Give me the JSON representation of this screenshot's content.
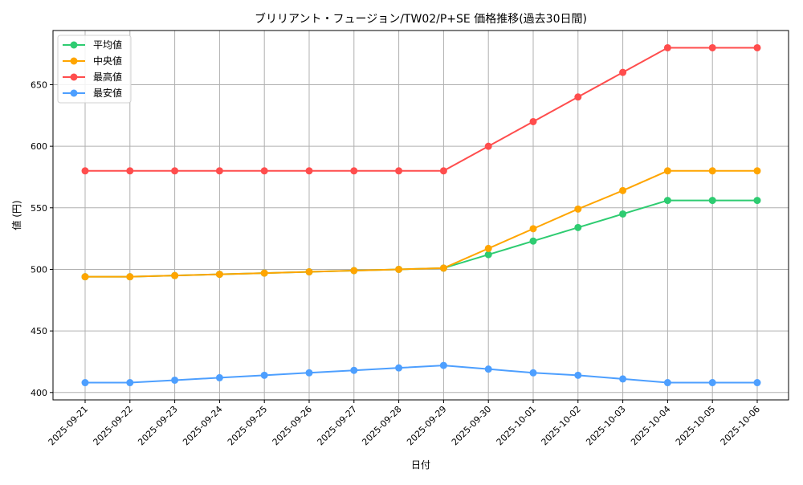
{
  "chart_data": {
    "type": "line",
    "title": "ブリリアント・フュージョン/TW02/P+SE 価格推移(過去30日間)",
    "xlabel": "日付",
    "ylabel": "値 (円)",
    "categories": [
      "2025-09-21",
      "2025-09-22",
      "2025-09-23",
      "2025-09-24",
      "2025-09-25",
      "2025-09-26",
      "2025-09-27",
      "2025-09-28",
      "2025-09-29",
      "2025-09-30",
      "2025-10-01",
      "2025-10-02",
      "2025-10-03",
      "2025-10-04",
      "2025-10-05",
      "2025-10-06"
    ],
    "ylim": [
      394,
      694
    ],
    "yticks": [
      400,
      450,
      500,
      550,
      600,
      650
    ],
    "grid": true,
    "legend_position": "top-left",
    "series": [
      {
        "name": "平均値",
        "color": "#2ecc71",
        "values": [
          494,
          494,
          495,
          496,
          497,
          498,
          499,
          500,
          501,
          512,
          523,
          534,
          545,
          556,
          556,
          556
        ]
      },
      {
        "name": "中央値",
        "color": "#ffa500",
        "values": [
          494,
          494,
          495,
          496,
          497,
          498,
          499,
          500,
          501,
          517,
          533,
          549,
          564,
          580,
          580,
          580
        ]
      },
      {
        "name": "最高値",
        "color": "#ff4d4d",
        "values": [
          580,
          580,
          580,
          580,
          580,
          580,
          580,
          580,
          580,
          600,
          620,
          640,
          660,
          680,
          680,
          680
        ]
      },
      {
        "name": "最安値",
        "color": "#4d9fff",
        "values": [
          408,
          408,
          410,
          412,
          414,
          416,
          418,
          420,
          422,
          419,
          416,
          414,
          411,
          408,
          408,
          408
        ]
      }
    ]
  }
}
